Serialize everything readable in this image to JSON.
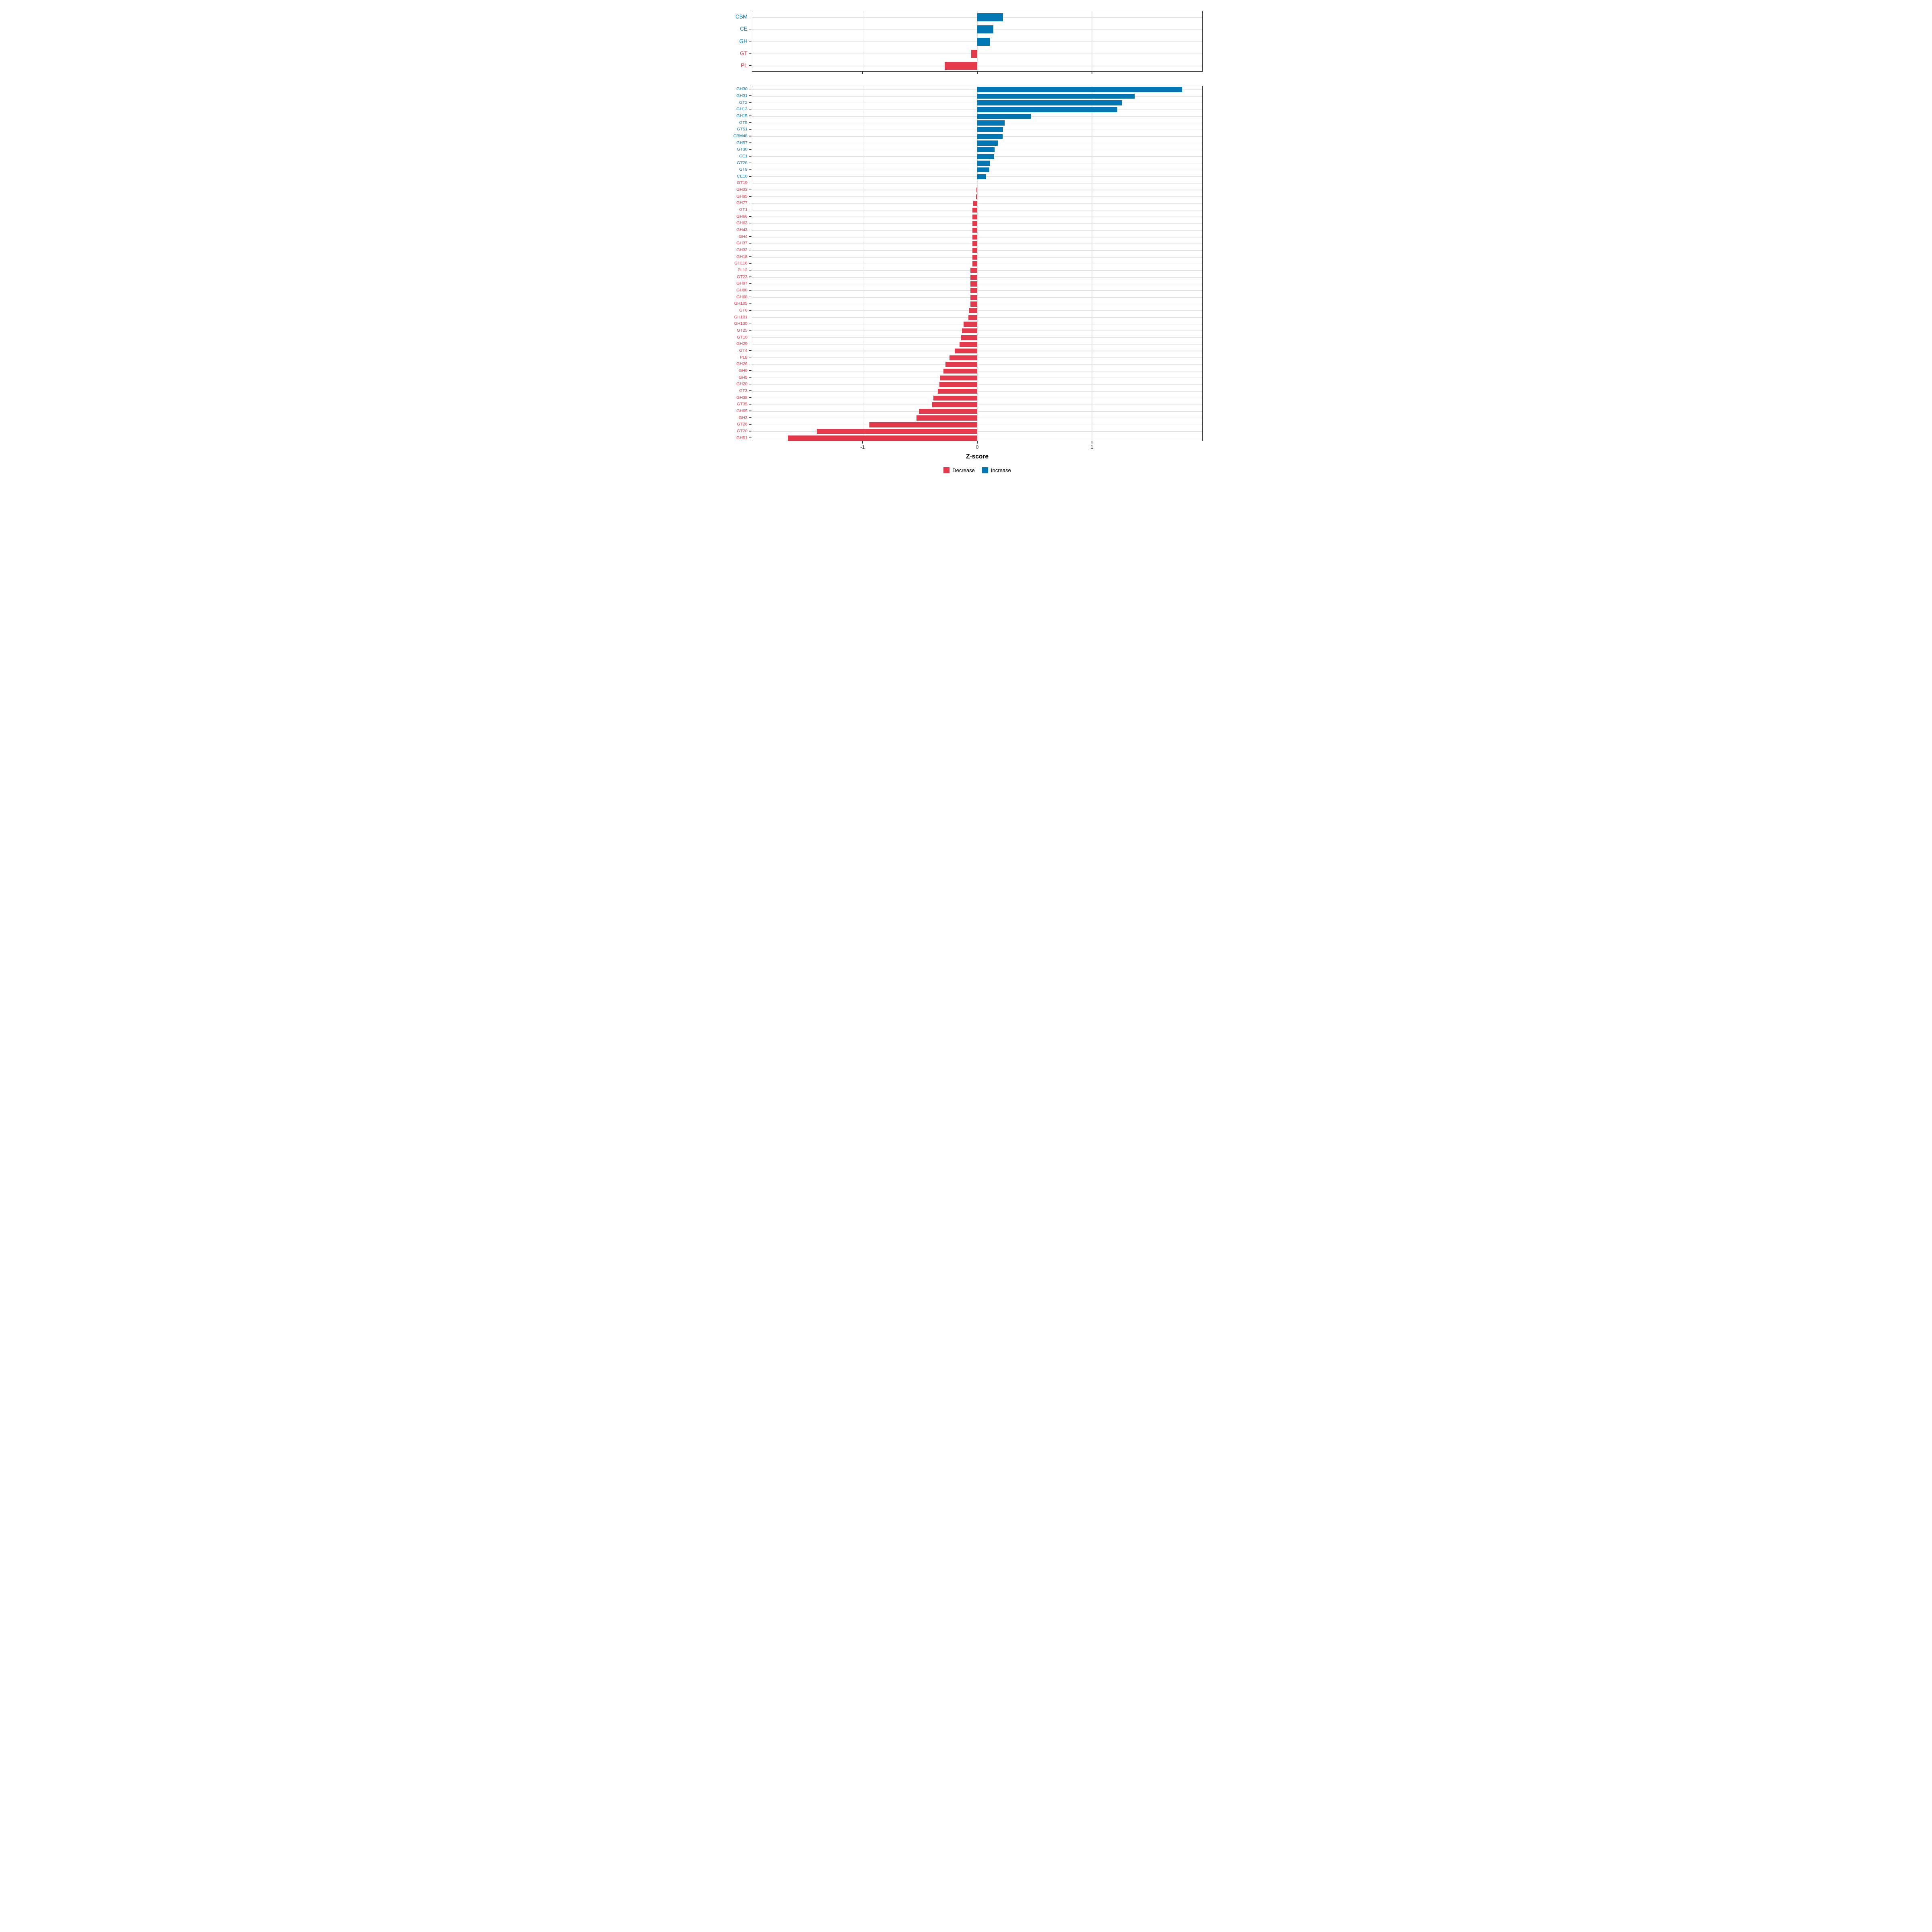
{
  "chart_data": {
    "type": "bar",
    "orientation": "horizontal",
    "xlabel": "Z-score",
    "x_tick_values": [
      -1,
      0,
      1
    ],
    "x_tick_labels": [
      "-1",
      "0",
      "1"
    ],
    "xlim": [
      -1.965,
      1.965
    ],
    "grid": {
      "vertical_at": [
        -1,
        0,
        1
      ],
      "horizontal": "one-per-category",
      "color": "#e2e2e2"
    },
    "colors": {
      "increase": "#0076B5",
      "decrease": "#E3394B"
    },
    "legend": {
      "position": "bottom",
      "entries": [
        {
          "key": "decrease",
          "label": "Decrease",
          "color": "#E3394B"
        },
        {
          "key": "increase",
          "label": "Increase",
          "color": "#0076B5"
        }
      ]
    },
    "panels": [
      {
        "id": "families",
        "categories": [
          "CBM",
          "CE",
          "GH",
          "GT",
          "PL"
        ],
        "values": [
          0.225,
          0.139,
          0.11,
          -0.054,
          -0.285
        ]
      },
      {
        "id": "cazy-subfamilies",
        "categories": [
          "GH30",
          "GH31",
          "GT2",
          "GH13",
          "GH15",
          "GT5",
          "GT51",
          "CBM48",
          "GH57",
          "GT30",
          "CE1",
          "GT28",
          "GT9",
          "CE10",
          "GT19",
          "GH33",
          "GH95",
          "GH77",
          "GT1",
          "GH66",
          "GH63",
          "GH43",
          "GH4",
          "GH37",
          "GH32",
          "GH18",
          "GH116",
          "PL12",
          "GT23",
          "GH97",
          "GH88",
          "GH68",
          "GH105",
          "GT6",
          "GH101",
          "GH130",
          "GT25",
          "GT10",
          "GH29",
          "GT4",
          "PL8",
          "GH26",
          "GH9",
          "GH5",
          "GH20",
          "GT3",
          "GH38",
          "GT35",
          "GH65",
          "GH3",
          "GT26",
          "GT20",
          "GH51"
        ],
        "values": [
          1.788,
          1.374,
          1.264,
          1.224,
          0.469,
          0.238,
          0.226,
          0.221,
          0.18,
          0.15,
          0.147,
          0.112,
          0.106,
          0.076,
          -0.002,
          -0.006,
          -0.012,
          -0.034,
          -0.042,
          -0.042,
          -0.041,
          -0.041,
          -0.041,
          -0.041,
          -0.041,
          -0.041,
          -0.041,
          -0.06,
          -0.06,
          -0.06,
          -0.06,
          -0.06,
          -0.059,
          -0.072,
          -0.076,
          -0.118,
          -0.132,
          -0.14,
          -0.155,
          -0.196,
          -0.244,
          -0.277,
          -0.297,
          -0.328,
          -0.33,
          -0.346,
          -0.384,
          -0.392,
          -0.511,
          -0.532,
          -0.943,
          -1.402,
          -1.655
        ]
      }
    ]
  }
}
